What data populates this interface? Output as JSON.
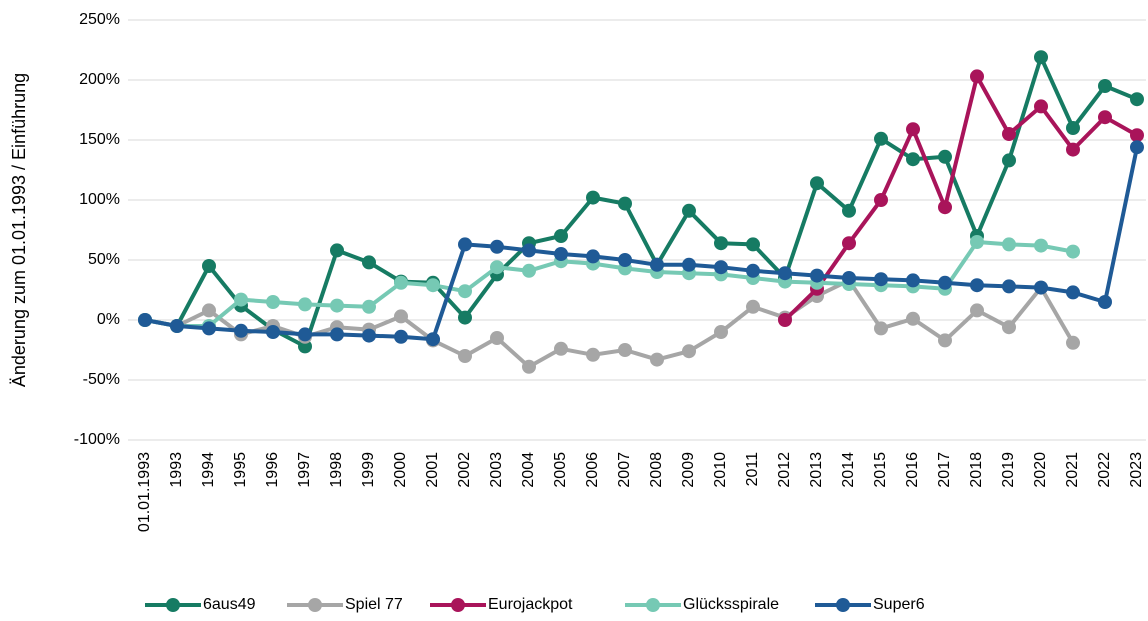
{
  "chart_data": {
    "type": "line",
    "y_label": "Änderung zum 01.01.1993 / Einführung",
    "categories": [
      "01.01.1993",
      "1993",
      "1994",
      "1995",
      "1996",
      "1997",
      "1998",
      "1999",
      "2000",
      "2001",
      "2002",
      "2003",
      "2004",
      "2005",
      "2006",
      "2007",
      "2008",
      "2009",
      "2010",
      "2011",
      "2012",
      "2013",
      "2014",
      "2015",
      "2016",
      "2017",
      "2018",
      "2019",
      "2020",
      "2021",
      "2022",
      "2023"
    ],
    "ylim": [
      -100,
      250
    ],
    "yticks": [
      {
        "value": -100,
        "label": "-100%"
      },
      {
        "value": -50,
        "label": "-50%"
      },
      {
        "value": 0,
        "label": "0%"
      },
      {
        "value": 50,
        "label": "50%"
      },
      {
        "value": 100,
        "label": "100%"
      },
      {
        "value": 150,
        "label": "150%"
      },
      {
        "value": 200,
        "label": "200%"
      },
      {
        "value": 250,
        "label": "250%"
      }
    ],
    "grid": true,
    "legend": "bottom",
    "series": [
      {
        "name": "6aus49",
        "color": "#167b63",
        "values": [
          0,
          -5,
          45,
          12,
          -8,
          -22,
          58,
          48,
          32,
          31,
          2,
          38,
          64,
          70,
          102,
          97,
          46,
          91,
          64,
          63,
          35,
          114,
          91,
          151,
          134,
          136,
          70,
          133,
          219,
          160,
          195,
          184
        ]
      },
      {
        "name": "Spiel 77",
        "color": "#a6a6a6",
        "values": [
          0,
          -5,
          8,
          -12,
          -5,
          -14,
          -6,
          -8,
          3,
          -17,
          -30,
          -15,
          -39,
          -24,
          -29,
          -25,
          -33,
          -26,
          -10,
          11,
          2,
          20,
          33,
          -7,
          1,
          -17,
          8,
          -6,
          27,
          -19,
          null,
          null
        ]
      },
      {
        "name": "Eurojackpot",
        "color": "#a9145a",
        "values": [
          null,
          null,
          null,
          null,
          null,
          null,
          null,
          null,
          null,
          null,
          null,
          null,
          null,
          null,
          null,
          null,
          null,
          null,
          null,
          null,
          0,
          26,
          64,
          100,
          159,
          94,
          203,
          155,
          178,
          142,
          169,
          154
        ]
      },
      {
        "name": "Glücksspirale",
        "color": "#76c9b4",
        "values": [
          0,
          -5,
          -5,
          17,
          15,
          13,
          12,
          11,
          31,
          29,
          24,
          44,
          41,
          49,
          47,
          43,
          40,
          39,
          38,
          35,
          32,
          31,
          30,
          29,
          28,
          26,
          65,
          63,
          62,
          57,
          null,
          null
        ]
      },
      {
        "name": "Super6",
        "color": "#1f5a96",
        "values": [
          0,
          -5,
          -7,
          -9,
          -10,
          -12,
          -12,
          -13,
          -14,
          -16,
          63,
          61,
          58,
          55,
          53,
          50,
          46,
          46,
          44,
          41,
          39,
          37,
          35,
          34,
          33,
          31,
          29,
          28,
          27,
          23,
          15,
          144
        ]
      }
    ]
  }
}
